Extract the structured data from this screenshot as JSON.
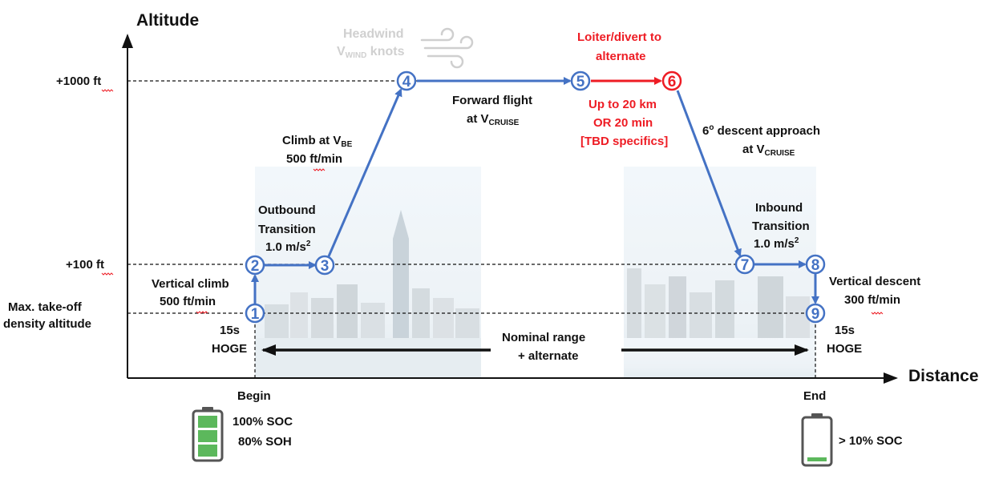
{
  "axes": {
    "y_title": "Altitude",
    "x_title": "Distance",
    "y_labels": {
      "high": "+1000 ft",
      "mid": "+100 ft"
    },
    "density_altitude": [
      "Max. take-off",
      "density altitude"
    ]
  },
  "headwind": {
    "line1": "Headwind",
    "line2_prefix": "V",
    "line2_sub": "WIND",
    "line2_suffix": " knots"
  },
  "waypoints": [
    "1",
    "2",
    "3",
    "4",
    "5",
    "6",
    "7",
    "8",
    "9"
  ],
  "labels": {
    "vertical_climb": [
      "Vertical climb",
      "500 ft/min"
    ],
    "outbound": [
      "Outbound",
      "Transition",
      "1.0 m/s",
      "2"
    ],
    "climb": {
      "prefix": "Climb at V",
      "sub": "BE",
      "line2": "500 ft/min"
    },
    "forward": {
      "line1": "Forward flight",
      "prefix": "at  V",
      "sub": "CRUISE"
    },
    "loiter": [
      "Loiter/divert to",
      "alternate"
    ],
    "loiter_detail": [
      "Up to 20 km",
      "OR 20 min",
      "[TBD specifics]"
    ],
    "descent": {
      "prefix": "6",
      "sup": "o",
      "suffix": " descent approach",
      "line2_prefix": "at V",
      "line2_sub": "CRUISE"
    },
    "inbound": [
      "Inbound",
      "Transition",
      "1.0 m/s",
      "2"
    ],
    "vertical_descent": [
      "Vertical descent",
      "300 ft/min"
    ],
    "hoge_left": [
      "15s",
      "HOGE"
    ],
    "hoge_right": [
      "15s",
      "HOGE"
    ],
    "range": [
      "Nominal range",
      "+ alternate"
    ]
  },
  "begin": {
    "label": "Begin",
    "soc": "100% SOC",
    "soh": "80% SOH"
  },
  "end": {
    "label": "End",
    "soc": "> 10% SOC"
  },
  "colors": {
    "path": "#4472c4",
    "divert": "#ee1c24",
    "battery_fill": "#5cb85c",
    "battery_body": "#555555"
  }
}
